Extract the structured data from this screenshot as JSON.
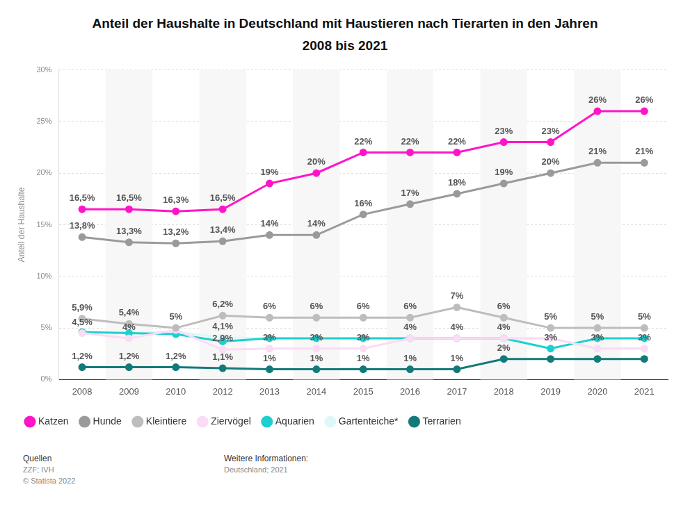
{
  "chart_data": {
    "type": "line",
    "title": "Anteil der Haushalte in Deutschland mit Haustieren nach Tierarten in den Jahren 2008 bis 2021",
    "y_label": "Anteil der Haushalte",
    "categories": [
      "2008",
      "2009",
      "2010",
      "2012",
      "2013",
      "2014",
      "2015",
      "2016",
      "2017",
      "2018",
      "2019",
      "2020",
      "2021"
    ],
    "series": [
      {
        "name": "Katzen",
        "color": "#ff14c8",
        "values": [
          16.5,
          16.5,
          16.3,
          16.5,
          19,
          20,
          22,
          22,
          22,
          23,
          23,
          26,
          26
        ],
        "value_labels": [
          "16,5%",
          "16,5%",
          "16,3%",
          "16,5%",
          "19%",
          "20%",
          "22%",
          "22%",
          "22%",
          "23%",
          "23%",
          "26%",
          "26%"
        ]
      },
      {
        "name": "Hunde",
        "color": "#9a9a9a",
        "values": [
          13.8,
          13.3,
          13.2,
          13.4,
          14,
          14,
          16,
          17,
          18,
          19,
          20,
          21,
          21
        ],
        "value_labels": [
          "13,8%",
          "13,3%",
          "13,2%",
          "13,4%",
          "14%",
          "14%",
          "16%",
          "17%",
          "18%",
          "19%",
          "20%",
          "21%",
          "21%"
        ]
      },
      {
        "name": "Kleintiere",
        "color": "#bdbdbd",
        "values": [
          5.9,
          5.4,
          5,
          6.2,
          6,
          6,
          6,
          6,
          7,
          6,
          5,
          5,
          5
        ],
        "value_labels": [
          "5,9%",
          "5,4%",
          "5%",
          "6,2%",
          "6%",
          "6%",
          "6%",
          "6%",
          "7%",
          "6%",
          "5%",
          "5%",
          "5%"
        ]
      },
      {
        "name": "Ziervögel",
        "color": "#fbdcf4",
        "values": [
          4.5,
          4,
          4.8,
          2.9,
          3,
          3,
          3,
          4,
          4,
          4,
          4,
          3,
          3
        ],
        "value_labels": [
          "4,5%",
          "4%",
          null,
          "2,9%",
          "3%",
          "3%",
          "3%",
          "4%",
          "4%",
          "4%",
          null,
          "3%",
          "3%"
        ]
      },
      {
        "name": "Aquarien",
        "color": "#1ecfcf",
        "values": [
          4.6,
          4.5,
          4.4,
          3.7,
          4,
          4,
          4,
          4,
          4,
          4,
          3,
          4,
          4
        ],
        "value_labels": [
          null,
          null,
          null,
          null,
          null,
          null,
          null,
          null,
          null,
          null,
          "3%",
          null,
          null
        ]
      },
      {
        "name": "Gartenteiche*",
        "color": "#def8f8",
        "values": [
          4.6,
          4.6,
          4.6,
          4.1,
          4,
          4,
          4,
          4,
          4,
          4,
          4,
          3,
          3
        ],
        "value_labels": [
          null,
          null,
          null,
          "4,1%",
          null,
          null,
          null,
          null,
          null,
          null,
          null,
          null,
          null
        ]
      },
      {
        "name": "Terrarien",
        "color": "#137a7a",
        "values": [
          1.2,
          1.2,
          1.2,
          1.1,
          1,
          1,
          1,
          1,
          1,
          2,
          2,
          2,
          2
        ],
        "value_labels": [
          "1,2%",
          "1,2%",
          "1,2%",
          "1,1%",
          "1%",
          "1%",
          "1%",
          "1%",
          "1%",
          "2%",
          null,
          null,
          null
        ]
      }
    ],
    "ylim": [
      0,
      30
    ],
    "yticks": [
      {
        "value": 0,
        "label": "0%"
      },
      {
        "value": 5,
        "label": "5%"
      },
      {
        "value": 10,
        "label": "10%"
      },
      {
        "value": 15,
        "label": "15%"
      },
      {
        "value": 20,
        "label": "20%"
      },
      {
        "value": 25,
        "label": "25%"
      },
      {
        "value": 30,
        "label": "30%"
      }
    ],
    "grid": true,
    "legend": "bottom",
    "data_labels": true,
    "marker": "circle"
  },
  "footer": {
    "sources_title": "Quellen",
    "sources": [
      "ZZF; IVH",
      "© Statista 2022"
    ],
    "info_title": "Weitere Informationen:",
    "info": "Deutschland; 2021"
  }
}
